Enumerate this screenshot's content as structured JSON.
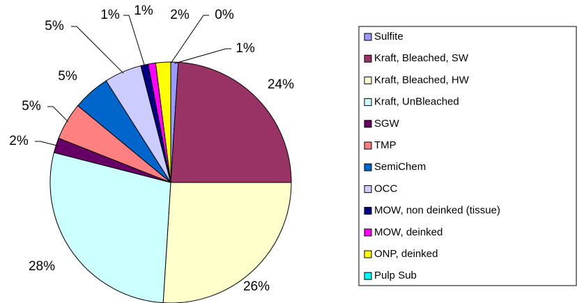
{
  "chart_data": {
    "type": "pie",
    "categories": [
      "Sulfite",
      "Kraft, Bleached, SW",
      "Kraft, Bleached, HW",
      "Kraft, UnBleached",
      "SGW",
      "TMP",
      "SemiChem",
      "OCC",
      "MOW, non deinked (tissue)",
      "MOW, deinked",
      "ONP, deinked",
      "Pulp Sub"
    ],
    "values": [
      1,
      24,
      26,
      28,
      2,
      5,
      5,
      5,
      1,
      1,
      2,
      0
    ],
    "value_labels": [
      "1%",
      "24%",
      "26%",
      "28%",
      "2%",
      "5%",
      "5%",
      "5%",
      "1%",
      "1%",
      "2%",
      "0%"
    ],
    "colors": [
      "#9999ff",
      "#993366",
      "#ffffcc",
      "#ccffff",
      "#660066",
      "#ff8080",
      "#0066cc",
      "#ccccff",
      "#000080",
      "#ff00ff",
      "#ffff00",
      "#00ffff"
    ],
    "legend": "right"
  }
}
